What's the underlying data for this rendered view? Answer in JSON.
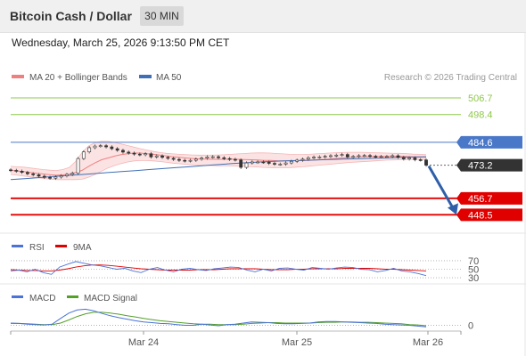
{
  "header": {
    "title": "Bitcoin Cash / Dollar",
    "timeframe": "30 MIN",
    "datetime": "Wednesday, March 25, 2026 9:13:50 PM CET"
  },
  "colors": {
    "ma20": "#f08080",
    "ma50": "#3f6fb5",
    "resistance": "#8fc84a",
    "pivot": "#4a78c8",
    "support": "#e00000",
    "arrow": "#2f5fa8",
    "rsi": "#4a72d8",
    "rsi_ma": "#e00000",
    "macd": "#4a72d8",
    "macd_signal": "#54a02a"
  },
  "chart_data": [
    {
      "type": "candlestick",
      "title": "",
      "legend": [
        {
          "name": "MA 20 + Bollinger Bands",
          "color": "#f08080"
        },
        {
          "name": "MA 50",
          "color": "#3f6fb5"
        }
      ],
      "legend_position": "top-left",
      "watermark": "Research © 2026 Trading Central",
      "x_labels": [
        "Mar 24",
        "Mar 25",
        "Mar 26"
      ],
      "ylim": [
        442,
        512
      ],
      "levels": [
        {
          "value": 506.7,
          "label": "506.7",
          "kind": "resistance"
        },
        {
          "value": 498.4,
          "label": "498.4",
          "kind": "resistance"
        },
        {
          "value": 484.6,
          "label": "484.6",
          "kind": "pivot"
        },
        {
          "value": 456.7,
          "label": "456.7",
          "kind": "support"
        },
        {
          "value": 448.5,
          "label": "448.5",
          "kind": "support"
        }
      ],
      "last_price": {
        "value": 473.2,
        "label": "473.2"
      },
      "closes": [
        470.6,
        470.2,
        469.6,
        468.9,
        468.4,
        467.7,
        467.1,
        466.7,
        467.3,
        467.9,
        468.6,
        469.2,
        476.5,
        479.8,
        481.9,
        482.7,
        482.9,
        482.3,
        481.4,
        480.6,
        479.7,
        479.2,
        478.7,
        478.4,
        478.9,
        477.3,
        477.8,
        477.1,
        476.6,
        476.1,
        475.6,
        475.3,
        475.6,
        476.2,
        476.7,
        477.3,
        477.4,
        476.9,
        476.5,
        476.1,
        475.8,
        472.1,
        474.3,
        474.8,
        474.8,
        474.7,
        474.1,
        473.7,
        473.7,
        474.3,
        475.1,
        475.7,
        476.2,
        476.9,
        477.2,
        477.3,
        477.6,
        477.9,
        478.2,
        478.5,
        477.3,
        477.5,
        477.9,
        478.0,
        477.6,
        477.4,
        477.5,
        477.5,
        477.9,
        477.1,
        476.3,
        476.8,
        475.9,
        475.8,
        473.2
      ],
      "ma20": [
        470.6,
        470.3,
        470.0,
        469.6,
        469.2,
        468.8,
        468.5,
        468.2,
        468.4,
        468.7,
        469.5,
        470.6,
        472.6,
        474.4,
        475.9,
        476.8,
        477.7,
        478.4,
        478.9,
        479.2,
        479.2,
        478.9,
        478.6,
        478.2,
        477.8,
        477.4,
        477.1,
        476.8,
        476.5,
        476.3,
        476.2,
        476.1,
        476.1,
        476.1,
        476.2,
        476.1,
        476.0,
        475.9,
        475.8,
        475.6,
        475.6,
        475.4,
        475.3,
        475.3,
        475.4,
        475.5,
        475.6,
        475.8,
        476.0,
        476.2,
        476.5,
        476.8,
        477.0,
        477.2,
        477.4,
        477.5,
        477.6,
        477.6,
        477.6,
        477.6,
        477.6,
        477.5,
        477.4,
        477.3,
        477.1
      ],
      "bb_upper": [
        472.6,
        472.4,
        472.2,
        471.8,
        471.4,
        471.0,
        470.7,
        470.5,
        471.0,
        472.0,
        475.0,
        479.5,
        482.8,
        484.4,
        485.0,
        485.0,
        484.5,
        483.8,
        483.0,
        482.2,
        481.4,
        480.7,
        480.0,
        479.5,
        479.1,
        478.8,
        478.6,
        478.4,
        478.3,
        478.2,
        478.2,
        478.2,
        478.3,
        478.4,
        478.6,
        478.8,
        479.0,
        479.2,
        479.3,
        479.3,
        479.2,
        479.0,
        478.8,
        478.6,
        478.5,
        478.5,
        478.6,
        478.8,
        479.0,
        479.2,
        479.4,
        479.5,
        479.6,
        479.6,
        479.6,
        479.5,
        479.4,
        479.3,
        479.2,
        479.1,
        479.1,
        478.9,
        478.7,
        478.6,
        478.4
      ],
      "bb_lower": [
        468.6,
        468.2,
        467.8,
        467.4,
        467.0,
        466.6,
        466.3,
        466.0,
        466.0,
        466.0,
        466.0,
        466.2,
        467.2,
        468.6,
        470.2,
        471.8,
        473.0,
        474.0,
        474.8,
        475.3,
        475.5,
        475.5,
        475.3,
        475.0,
        474.6,
        474.2,
        473.9,
        473.6,
        473.4,
        473.2,
        473.1,
        473.0,
        472.9,
        472.9,
        472.8,
        472.7,
        472.6,
        472.4,
        472.3,
        472.1,
        472.0,
        471.9,
        471.9,
        472.0,
        472.2,
        472.4,
        472.7,
        473.0,
        473.3,
        473.6,
        473.9,
        474.2,
        474.5,
        474.7,
        474.9,
        475.1,
        475.3,
        475.5,
        475.7,
        475.8,
        475.9,
        476.0,
        476.1,
        476.1,
        476.0
      ],
      "ma50": [
        466.0,
        466.5,
        467.0,
        467.5,
        468.0,
        468.5,
        469.0,
        469.5,
        470.0,
        470.5,
        471.0,
        471.5,
        472.0,
        472.5,
        473.0,
        473.5,
        474.0,
        474.4,
        474.8,
        475.1,
        475.4,
        475.6,
        475.8,
        476.0,
        476.2,
        476.4,
        476.6,
        476.8,
        477.0,
        477.2,
        477.4
      ],
      "projection": {
        "from": 473.2,
        "to": 448.5
      }
    },
    {
      "type": "line",
      "title": "",
      "legend": [
        {
          "name": "RSI",
          "color": "#4a72d8"
        },
        {
          "name": "9MA",
          "color": "#e00000"
        }
      ],
      "ylim": [
        26,
        74
      ],
      "levels": [
        70,
        50,
        30
      ],
      "level_labels": [
        "70",
        "50",
        "30"
      ],
      "series": [
        {
          "name": "RSI",
          "values": [
            46,
            48,
            44,
            50,
            42,
            38,
            55,
            62,
            68,
            64,
            60,
            58,
            54,
            50,
            52,
            46,
            42,
            50,
            54,
            48,
            44,
            50,
            52,
            49,
            47,
            51,
            53,
            55,
            54,
            48,
            44,
            50,
            46,
            52,
            53,
            50,
            48,
            54,
            52,
            50,
            53,
            55,
            54,
            50,
            49,
            44,
            47,
            52,
            46,
            44,
            40,
            35
          ]
        },
        {
          "name": "9MA",
          "values": [
            49,
            48,
            47,
            47,
            46,
            46,
            48,
            51,
            55,
            58,
            60,
            60,
            59,
            57,
            55,
            53,
            51,
            50,
            49,
            48,
            48,
            48,
            48,
            49,
            49,
            49,
            50,
            51,
            51,
            51,
            51,
            50,
            49,
            49,
            49,
            50,
            50,
            51,
            51,
            51,
            51,
            52,
            52,
            52,
            52,
            51,
            50,
            50,
            49,
            48,
            47,
            46
          ]
        }
      ]
    },
    {
      "type": "line",
      "title": "",
      "legend": [
        {
          "name": "MACD",
          "color": "#4a72d8"
        },
        {
          "name": "MACD Signal",
          "color": "#54a02a"
        }
      ],
      "ylim": [
        -1.5,
        5
      ],
      "levels": [
        0
      ],
      "level_labels": [
        "0"
      ],
      "series": [
        {
          "name": "MACD",
          "values": [
            0.6,
            0.5,
            0.3,
            0.2,
            0.1,
            0.3,
            1.8,
            3.2,
            4.0,
            4.2,
            3.8,
            3.1,
            2.5,
            2.0,
            1.6,
            1.2,
            0.9,
            0.7,
            0.5,
            0.4,
            0.2,
            0.0,
            0.0,
            0.3,
            0.1,
            -0.1,
            0.2,
            0.3,
            0.6,
            0.9,
            0.8,
            0.7,
            0.5,
            0.4,
            0.4,
            0.5,
            0.6,
            0.9,
            1.0,
            1.0,
            0.9,
            0.8,
            0.7,
            0.6,
            0.5,
            0.3,
            0.2,
            0.1,
            0.0,
            -0.2,
            -0.4
          ]
        },
        {
          "name": "MACD Signal",
          "values": [
            0.5,
            0.5,
            0.4,
            0.3,
            0.2,
            0.2,
            0.6,
            1.4,
            2.3,
            3.0,
            3.4,
            3.4,
            3.2,
            2.9,
            2.5,
            2.2,
            1.8,
            1.5,
            1.2,
            1.0,
            0.8,
            0.6,
            0.4,
            0.3,
            0.3,
            0.2,
            0.2,
            0.2,
            0.3,
            0.5,
            0.6,
            0.7,
            0.7,
            0.6,
            0.6,
            0.6,
            0.6,
            0.7,
            0.8,
            0.8,
            0.9,
            0.9,
            0.8,
            0.8,
            0.7,
            0.6,
            0.5,
            0.4,
            0.2,
            0.1,
            -0.1
          ]
        }
      ]
    }
  ]
}
